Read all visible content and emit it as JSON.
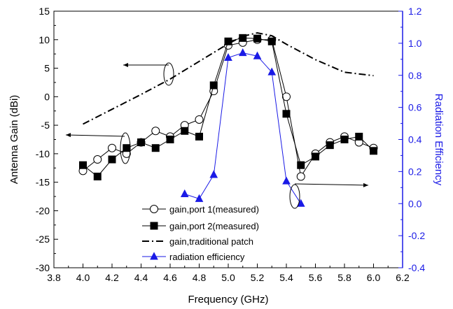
{
  "chart_data": {
    "type": "line",
    "xlabel": "Frequency (GHz)",
    "ylabel_left": "Antenna Gain (dBi)",
    "ylabel_right": "Radiation Efficiency",
    "xlim": [
      3.8,
      6.2
    ],
    "ylim_left": [
      -30,
      15
    ],
    "ylim_right": [
      -0.4,
      1.2
    ],
    "x_ticks": [
      3.8,
      4.0,
      4.2,
      4.4,
      4.6,
      4.8,
      5.0,
      5.2,
      5.4,
      5.6,
      5.8,
      6.0,
      6.2
    ],
    "x_tick_labels": [
      "3.8",
      "4.0",
      "4.2",
      "4.4",
      "4.6",
      "4.8",
      "5.0",
      "5.2",
      "5.4",
      "5.6",
      "5.8",
      "6.0",
      "6.2"
    ],
    "y_left_ticks": [
      -30,
      -25,
      -20,
      -15,
      -10,
      -5,
      0,
      5,
      10,
      15
    ],
    "y_left_tick_labels": [
      "-30",
      "-25",
      "-20",
      "-15",
      "-10",
      "-5",
      "0",
      "5",
      "10",
      "15"
    ],
    "y_right_ticks": [
      -0.4,
      -0.2,
      0.0,
      0.2,
      0.4,
      0.6,
      0.8,
      1.0,
      1.2
    ],
    "y_right_tick_labels": [
      "-0.4",
      "-0.2",
      "0.0",
      "0.2",
      "0.4",
      "0.6",
      "0.8",
      "1.0",
      "1.2"
    ],
    "grid": false,
    "legend_position": "lower-center",
    "series": [
      {
        "name": "gain,port 1(measured)",
        "axis": "left",
        "color": "#000000",
        "marker": "open-circle",
        "x": [
          4.0,
          4.1,
          4.2,
          4.3,
          4.4,
          4.5,
          4.6,
          4.7,
          4.8,
          4.9,
          5.0,
          5.1,
          5.2,
          5.3,
          5.4,
          5.5,
          5.6,
          5.7,
          5.8,
          5.9,
          6.0
        ],
        "y": [
          -13,
          -11,
          -9,
          -10,
          -8,
          -6,
          -7,
          -5,
          -4,
          1,
          9,
          9.5,
          10,
          10,
          0,
          -14,
          -10,
          -8,
          -7,
          -8,
          -9
        ]
      },
      {
        "name": "gain,port 2(measured)",
        "axis": "left",
        "color": "#000000",
        "marker": "filled-square",
        "x": [
          4.0,
          4.1,
          4.2,
          4.3,
          4.4,
          4.5,
          4.6,
          4.7,
          4.8,
          4.9,
          5.0,
          5.1,
          5.2,
          5.3,
          5.4,
          5.5,
          5.6,
          5.7,
          5.8,
          5.9,
          6.0
        ],
        "y": [
          -12,
          -14,
          -11,
          -9,
          -8,
          -9,
          -7.5,
          -6,
          -7,
          2,
          9.7,
          10.3,
          10.2,
          9.7,
          -3,
          -12,
          -10.5,
          -8.5,
          -7.5,
          -7,
          -9.5
        ]
      },
      {
        "name": "gain,traditional patch",
        "axis": "left",
        "color": "#000000",
        "marker": "none",
        "dash": "dash-dot",
        "x": [
          4.0,
          4.2,
          4.4,
          4.6,
          4.8,
          5.0,
          5.1,
          5.2,
          5.3,
          5.4,
          5.6,
          5.8,
          6.0
        ],
        "y": [
          -4.8,
          -2.2,
          0.4,
          3.1,
          6.2,
          9.3,
          10.6,
          11.2,
          10.7,
          9.2,
          6.5,
          4.3,
          3.7
        ]
      },
      {
        "name": "radiation efficiency",
        "axis": "right",
        "color": "#1a1ae6",
        "marker": "filled-triangle",
        "x": [
          4.7,
          4.8,
          4.9,
          5.0,
          5.1,
          5.2,
          5.3,
          5.4,
          5.5
        ],
        "y": [
          0.06,
          0.03,
          0.18,
          0.91,
          0.94,
          0.92,
          0.82,
          0.14,
          0.0
        ]
      }
    ]
  }
}
